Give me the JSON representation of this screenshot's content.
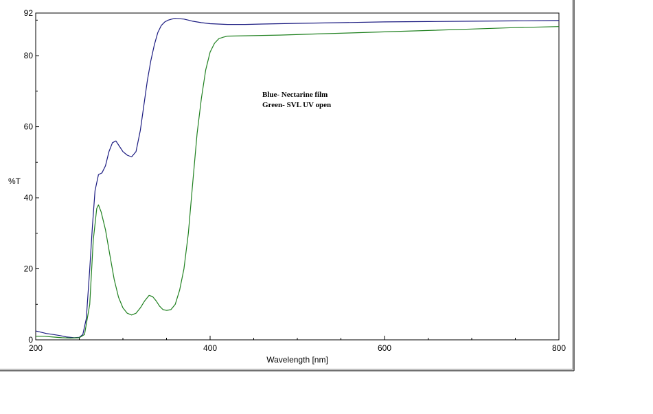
{
  "chart_data": {
    "type": "line",
    "xlabel": "Wavelength [nm]",
    "ylabel": "%T",
    "xlim": [
      200,
      800
    ],
    "ylim": [
      0,
      92
    ],
    "xticks": [
      200,
      400,
      600,
      800
    ],
    "yticks": [
      0,
      20,
      40,
      60,
      80,
      92
    ],
    "xtick_labels": [
      "200",
      "400",
      "600",
      "800"
    ],
    "ytick_labels": [
      "0",
      "20",
      "40",
      "60",
      "80",
      "92"
    ],
    "grid": false,
    "annotations": [
      "Blue- Nectarine film",
      "Green- SVL UV open"
    ],
    "series": [
      {
        "color": "#1a1a80",
        "x": [
          200,
          205,
          212,
          220,
          228,
          236,
          244,
          250,
          254,
          258,
          262,
          265,
          268,
          272,
          276,
          280,
          284,
          288,
          292,
          296,
          300,
          305,
          310,
          315,
          320,
          324,
          328,
          332,
          336,
          340,
          344,
          348,
          352,
          356,
          360,
          365,
          370,
          375,
          380,
          390,
          400,
          420,
          440,
          460,
          480,
          500,
          550,
          600,
          650,
          700,
          750,
          800
        ],
        "y": [
          2.5,
          2.2,
          1.8,
          1.5,
          1.2,
          0.8,
          0.6,
          0.7,
          1.5,
          6,
          20,
          32,
          42,
          46.5,
          47,
          49,
          53,
          55.5,
          56,
          54.5,
          53,
          52,
          51.5,
          53,
          59,
          66,
          73,
          78.5,
          83,
          86.5,
          88.5,
          89.5,
          90,
          90.3,
          90.5,
          90.4,
          90.3,
          90,
          89.7,
          89.3,
          89,
          88.8,
          88.8,
          88.9,
          89,
          89.1,
          89.3,
          89.5,
          89.6,
          89.7,
          89.8,
          89.9
        ]
      },
      {
        "color": "#1f801f",
        "x": [
          200,
          210,
          220,
          230,
          240,
          250,
          256,
          262,
          266,
          270,
          272,
          275,
          280,
          285,
          290,
          295,
          300,
          305,
          310,
          315,
          320,
          325,
          330,
          334,
          338,
          342,
          346,
          350,
          355,
          360,
          365,
          370,
          375,
          380,
          385,
          390,
          395,
          400,
          405,
          410,
          415,
          420,
          440,
          480,
          520,
          560,
          600,
          650,
          700,
          750,
          800
        ],
        "y": [
          1,
          1,
          0.8,
          0.6,
          0.5,
          0.6,
          1.5,
          10,
          28,
          37,
          38,
          36,
          31,
          24,
          17,
          12,
          9,
          7.5,
          7,
          7.5,
          9,
          11,
          12.5,
          12.2,
          11,
          9.5,
          8.5,
          8.3,
          8.5,
          10,
          14,
          20,
          30,
          44,
          58,
          68,
          76,
          81,
          83.5,
          84.8,
          85.2,
          85.5,
          85.6,
          85.8,
          86.1,
          86.4,
          86.7,
          87.1,
          87.5,
          87.9,
          88.2
        ]
      }
    ]
  }
}
